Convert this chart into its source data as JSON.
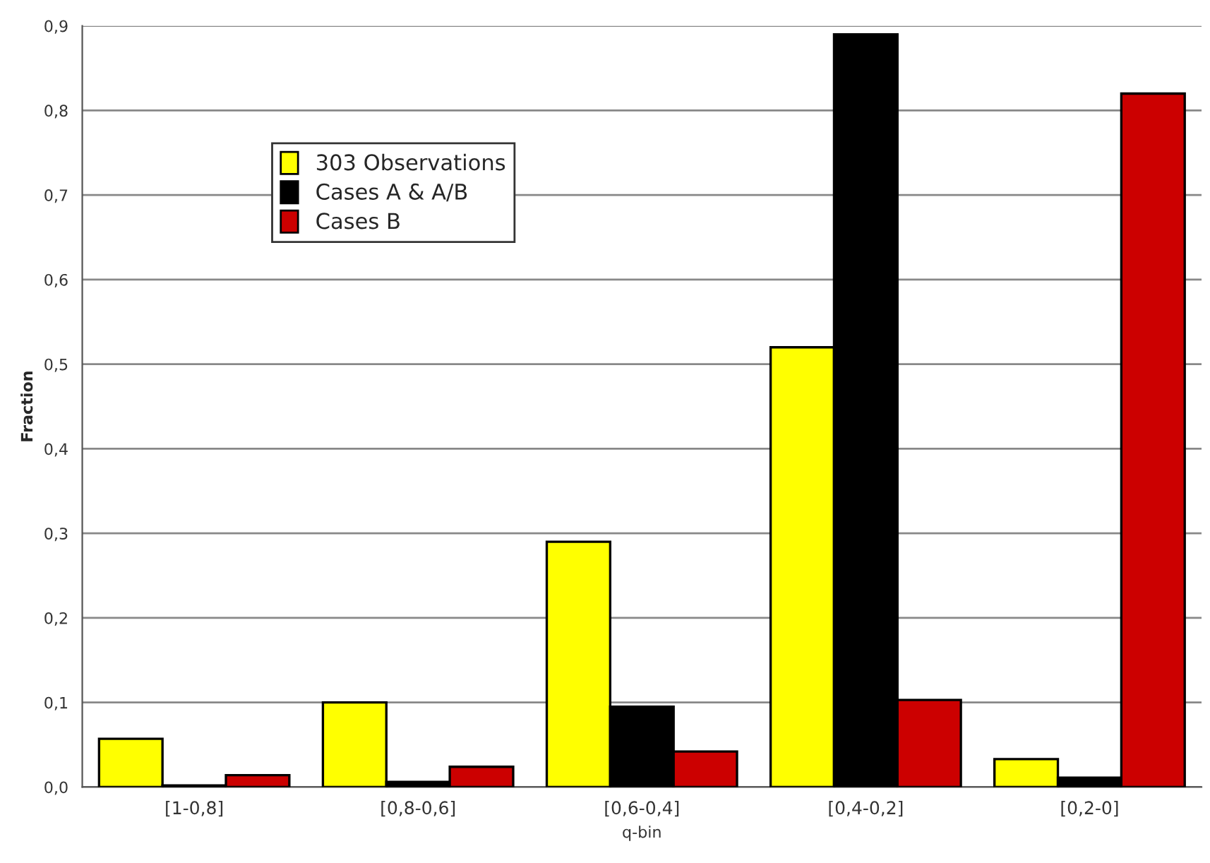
{
  "chart_data": {
    "type": "bar",
    "xlabel": "q-bin",
    "ylabel": "Fraction",
    "categories": [
      "[1-0,8]",
      "[0,8-0,6]",
      "[0,6-0,4]",
      "[0,4-0,2]",
      "[0,2-0]"
    ],
    "series": [
      {
        "name": "303 Observations",
        "color": "#ffff00",
        "values": [
          0.057,
          0.1,
          0.29,
          0.52,
          0.033
        ]
      },
      {
        "name": "Cases A & A/B",
        "color": "#000000",
        "values": [
          0.002,
          0.006,
          0.095,
          0.89,
          0.011
        ]
      },
      {
        "name": "Cases B",
        "color": "#cc0000",
        "values": [
          0.014,
          0.024,
          0.042,
          0.103,
          0.82
        ]
      }
    ],
    "ylim": [
      0,
      0.9
    ],
    "yticks": [
      {
        "value": 0,
        "label": "0,0"
      },
      {
        "value": 0.1,
        "label": "0,1"
      },
      {
        "value": 0.2,
        "label": "0,2"
      },
      {
        "value": 0.3,
        "label": "0,3"
      },
      {
        "value": 0.4,
        "label": "0,4"
      },
      {
        "value": 0.5,
        "label": "0,5"
      },
      {
        "value": 0.6,
        "label": "0,6"
      },
      {
        "value": 0.7,
        "label": "0,7"
      },
      {
        "value": 0.8,
        "label": "0,8"
      },
      {
        "value": 0.9,
        "label": "0,9"
      }
    ],
    "grid": "y",
    "legend": "top left"
  }
}
